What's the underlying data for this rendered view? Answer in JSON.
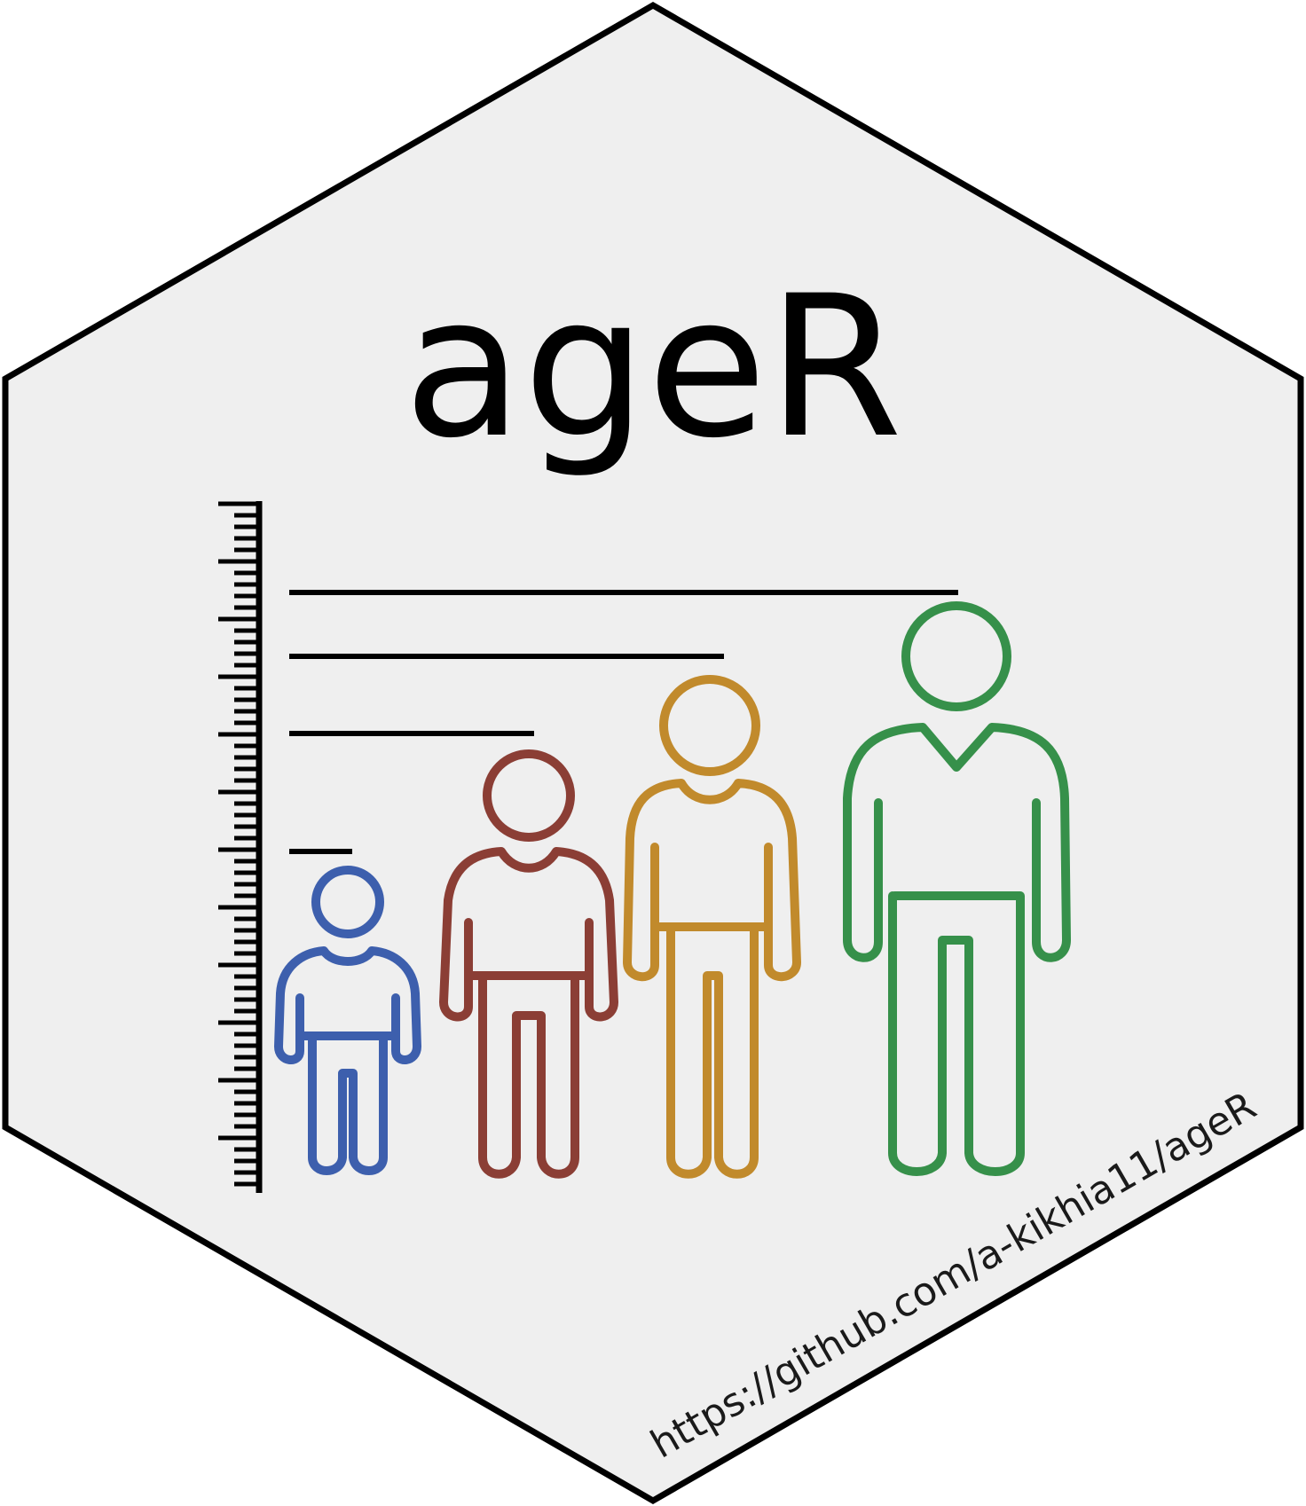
{
  "title": "ageR",
  "url": "https://github.com/a-kikhia11/ageR",
  "colors": {
    "background": "#efefef",
    "border": "#000000",
    "title": "#000000",
    "url": "#1a1a1a",
    "child_small": "#3d5fad",
    "child_large": "#8b3e35",
    "teen": "#c18a2c",
    "adult": "#36904a"
  },
  "figures": [
    {
      "name": "small-child",
      "icon": "person-icon",
      "color_key": "child_small"
    },
    {
      "name": "older-child",
      "icon": "person-icon",
      "color_key": "child_large"
    },
    {
      "name": "teenager",
      "icon": "person-icon",
      "color_key": "teen"
    },
    {
      "name": "adult",
      "icon": "person-icon",
      "color_key": "adult"
    }
  ]
}
